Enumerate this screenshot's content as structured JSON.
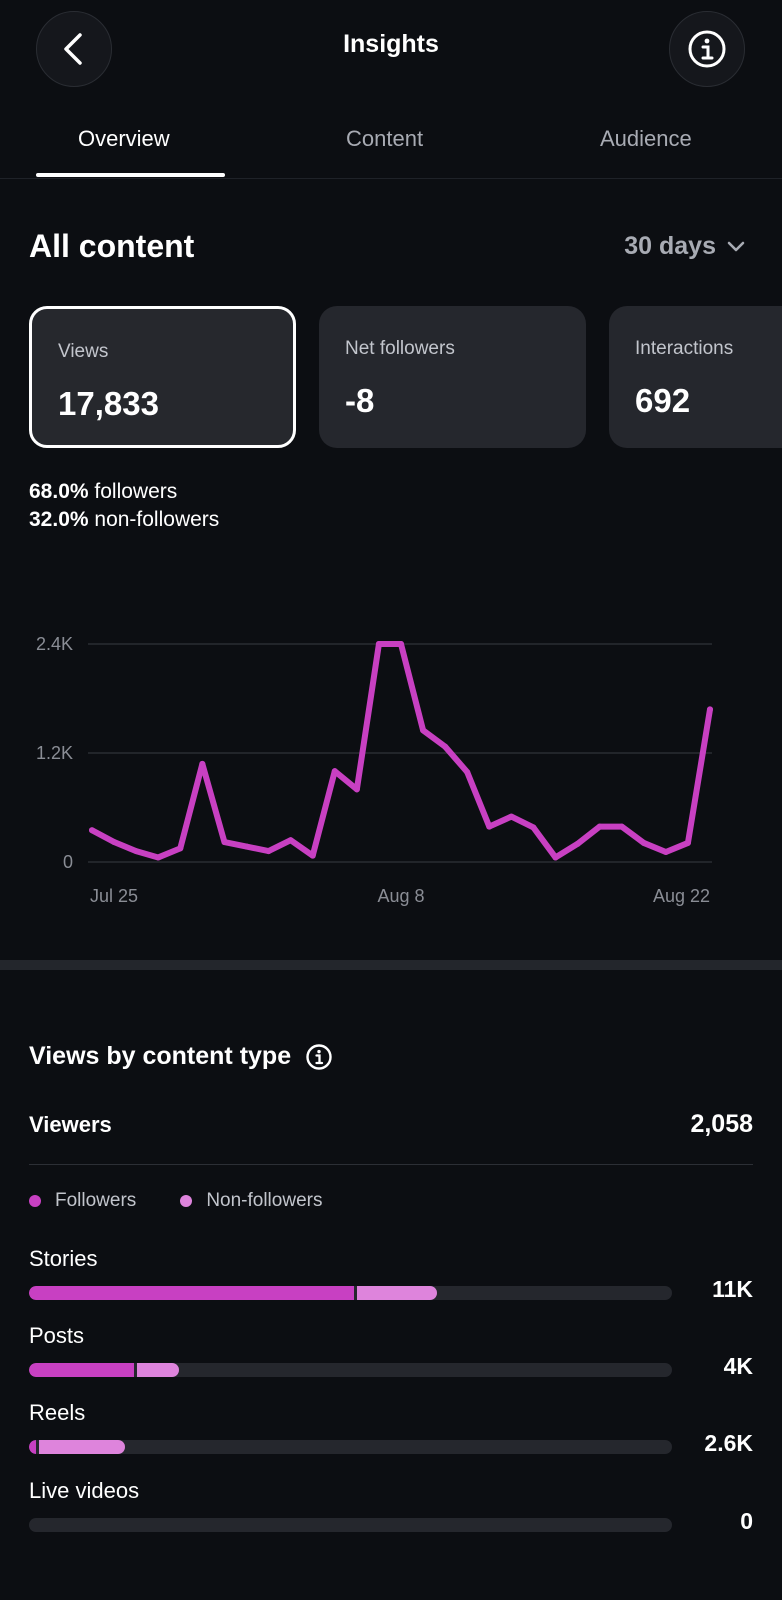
{
  "header": {
    "title": "Insights",
    "back_icon": "chevron-left-icon",
    "info_icon": "info-icon"
  },
  "tabs": [
    {
      "label": "Overview",
      "active": true
    },
    {
      "label": "Content",
      "active": false
    },
    {
      "label": "Audience",
      "active": false
    }
  ],
  "section": {
    "title": "All content",
    "range_label": "30 days"
  },
  "cards": [
    {
      "label": "Views",
      "value": "17,833",
      "selected": true
    },
    {
      "label": "Net followers",
      "value": "-8",
      "selected": false
    },
    {
      "label": "Interactions",
      "value": "692",
      "selected": false
    }
  ],
  "split": {
    "followers_pct": "68.0%",
    "followers_label": "followers",
    "non_followers_pct": "32.0%",
    "non_followers_label": "non-followers"
  },
  "chart_data": {
    "type": "line",
    "x_tick_labels": [
      "Jul 25",
      "Aug 8",
      "Aug 22"
    ],
    "y_tick_labels": [
      "0",
      "1.2K",
      "2.4K"
    ],
    "ylim": [
      0,
      2400
    ],
    "grid": true,
    "color": "#c840c2",
    "x": [
      "Jul 25",
      "Jul 26",
      "Jul 27",
      "Jul 28",
      "Jul 29",
      "Jul 30",
      "Jul 31",
      "Aug 1",
      "Aug 2",
      "Aug 3",
      "Aug 4",
      "Aug 5",
      "Aug 6",
      "Aug 7",
      "Aug 8",
      "Aug 9",
      "Aug 10",
      "Aug 11",
      "Aug 12",
      "Aug 13",
      "Aug 14",
      "Aug 15",
      "Aug 16",
      "Aug 17",
      "Aug 18",
      "Aug 19",
      "Aug 20",
      "Aug 21",
      "Aug 22"
    ],
    "values": [
      350,
      220,
      120,
      50,
      150,
      1080,
      220,
      170,
      120,
      240,
      70,
      1000,
      800,
      2400,
      2400,
      1450,
      1270,
      990,
      390,
      500,
      380,
      50,
      200,
      390,
      390,
      210,
      110,
      210,
      1680
    ]
  },
  "views_by_type": {
    "title": "Views by content type",
    "info_icon": "info-icon",
    "viewers_label": "Viewers",
    "viewers_value": "2,058",
    "legend": [
      {
        "label": "Followers",
        "color": "#c840c2"
      },
      {
        "label": "Non-followers",
        "color": "#de84dc"
      }
    ],
    "rows": [
      {
        "label": "Stories",
        "value": "11K",
        "followers_fraction": 0.505,
        "non_followers_fraction": 0.125
      },
      {
        "label": "Posts",
        "value": "4K",
        "followers_fraction": 0.163,
        "non_followers_fraction": 0.065
      },
      {
        "label": "Reels",
        "value": "2.6K",
        "followers_fraction": 0.011,
        "non_followers_fraction": 0.134
      },
      {
        "label": "Live videos",
        "value": "0",
        "followers_fraction": 0,
        "non_followers_fraction": 0
      }
    ]
  }
}
